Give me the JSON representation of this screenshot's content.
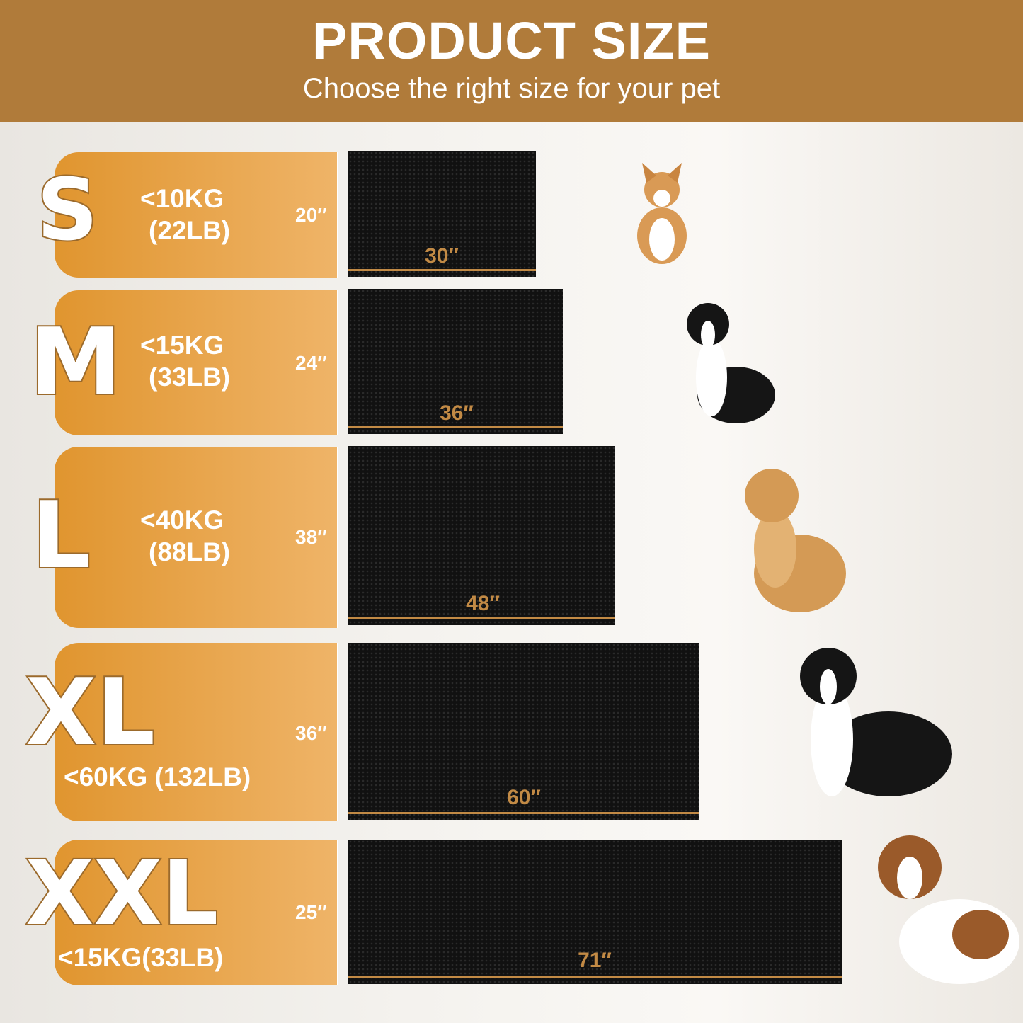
{
  "header": {
    "title": "PRODUCT SIZE",
    "subtitle": "Choose the right size for your pet"
  },
  "colors": {
    "header": "#b07b3a",
    "panel": "#e0952f",
    "mat": "#111111",
    "measure": "#c28a45"
  },
  "sizes": [
    {
      "size": "S",
      "weight_kg": "<10KG",
      "weight_lb": "(22LB)",
      "height": "20″",
      "width": "30″",
      "dog": "corgi"
    },
    {
      "size": "M",
      "weight_kg": "<15KG",
      "weight_lb": "(33LB)",
      "height": "24″",
      "width": "36″",
      "dog": "border-collie"
    },
    {
      "size": "L",
      "weight_kg": "<40KG",
      "weight_lb": "(88LB)",
      "height": "38″",
      "width": "48″",
      "dog": "golden-retriever"
    },
    {
      "size": "XL",
      "weight": "<60KG (132LB)",
      "height": "36″",
      "width": "60″",
      "dog": "bernese-mountain-dog"
    },
    {
      "size": "XXL",
      "weight": "<15KG(33LB)",
      "height": "25″",
      "width": "71″",
      "dog": "saint-bernard"
    }
  ]
}
